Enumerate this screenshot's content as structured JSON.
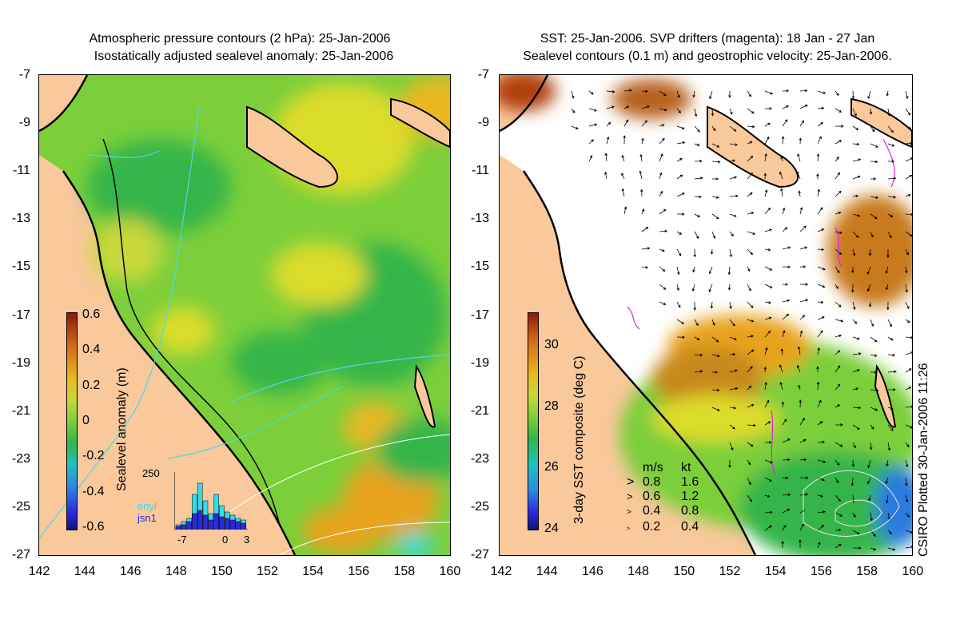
{
  "left_panel": {
    "title_line1": "Atmospheric pressure contours (2 hPa): 25-Jan-2006",
    "title_line2": "Isostatically adjusted sealevel anomaly: 25-Jan-2006",
    "colorbar_label": "Sealevel anomaly (m)",
    "colorbar_ticks": [
      "0.6",
      "0.4",
      "0.2",
      "0",
      "-0.2",
      "-0.4",
      "-0.6"
    ],
    "histogram": {
      "y_max_label": "250",
      "x_labels": [
        "-7",
        "0",
        "3"
      ],
      "legend": [
        "enyl",
        "jsn1"
      ],
      "legend_colors": [
        "#33dde8",
        "#2a2ae0"
      ]
    }
  },
  "right_panel": {
    "title_line1": "SST: 25-Jan-2006. SVP drifters (magenta): 18 Jan - 27 Jan",
    "title_line2": "Sealevel contours (0.1 m) and geostrophic velocity: 25-Jan-2006.",
    "colorbar_label": "3-day SST composite (deg C)",
    "colorbar_ticks": [
      "30",
      "28",
      "26",
      "24"
    ],
    "velocity_key": {
      "header_ms": "m/s",
      "header_kt": "kt",
      "rows": [
        {
          "ms": "0.8",
          "kt": "1.6"
        },
        {
          "ms": "0.6",
          "kt": "1.2"
        },
        {
          "ms": "0.4",
          "kt": "0.8"
        },
        {
          "ms": "0.2",
          "kt": "0.4"
        }
      ]
    },
    "credit": "CSIRO Plotted 30-Jan-2006 11:26"
  },
  "axes": {
    "lat_labels": [
      "-7",
      "-9",
      "-11",
      "-13",
      "-15",
      "-17",
      "-19",
      "-21",
      "-23",
      "-25",
      "-27"
    ],
    "lon_labels": [
      "142",
      "144",
      "146",
      "148",
      "150",
      "152",
      "154",
      "156",
      "158",
      "160"
    ]
  },
  "colors": {
    "land": "#f9c89b",
    "ocean_green": "#7ccf3a",
    "deep_green": "#35b54a",
    "yellow": "#dcdc2a",
    "orange": "#e8a31e",
    "white": "#ffffff"
  }
}
